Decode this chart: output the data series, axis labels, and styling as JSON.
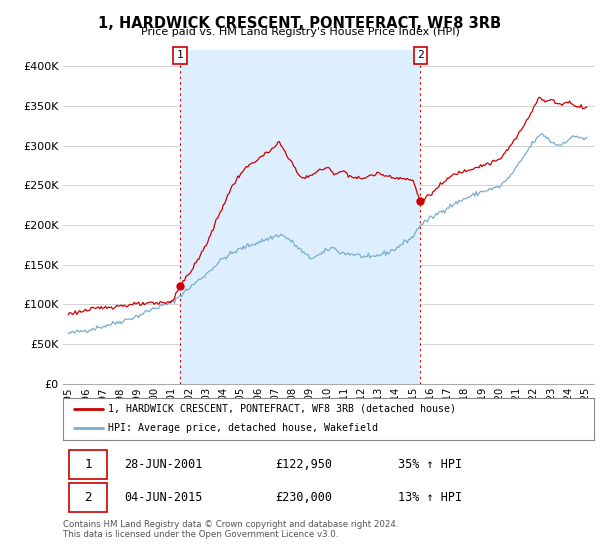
{
  "title": "1, HARDWICK CRESCENT, PONTEFRACT, WF8 3RB",
  "subtitle": "Price paid vs. HM Land Registry's House Price Index (HPI)",
  "legend_line1": "1, HARDWICK CRESCENT, PONTEFRACT, WF8 3RB (detached house)",
  "legend_line2": "HPI: Average price, detached house, Wakefield",
  "annotation1_label": "1",
  "annotation1_date": "28-JUN-2001",
  "annotation1_price": "£122,950",
  "annotation1_hpi": "35% ↑ HPI",
  "annotation2_label": "2",
  "annotation2_date": "04-JUN-2015",
  "annotation2_price": "£230,000",
  "annotation2_hpi": "13% ↑ HPI",
  "footer": "Contains HM Land Registry data © Crown copyright and database right 2024.\nThis data is licensed under the Open Government Licence v3.0.",
  "sale_color": "#cc0000",
  "hpi_color": "#7aadcf",
  "shade_color": "#ddeeff",
  "annotation_color": "#cc0000",
  "background_color": "#ffffff",
  "grid_color": "#cccccc",
  "ylim": [
    0,
    420000
  ],
  "yticks": [
    0,
    50000,
    100000,
    150000,
    200000,
    250000,
    300000,
    350000,
    400000
  ],
  "ytick_labels": [
    "£0",
    "£50K",
    "£100K",
    "£150K",
    "£200K",
    "£250K",
    "£300K",
    "£350K",
    "£400K"
  ],
  "sale1_x": 2001.49,
  "sale1_y": 122950,
  "sale2_x": 2015.42,
  "sale2_y": 230000,
  "vline1_x": 2001.49,
  "vline2_x": 2015.42,
  "xlim_left": 1994.7,
  "xlim_right": 2025.5,
  "xtick_years": [
    1995,
    1996,
    1997,
    1998,
    1999,
    2000,
    2001,
    2002,
    2003,
    2004,
    2005,
    2006,
    2007,
    2008,
    2009,
    2010,
    2011,
    2012,
    2013,
    2014,
    2015,
    2016,
    2017,
    2018,
    2019,
    2020,
    2021,
    2022,
    2023,
    2024,
    2025
  ]
}
